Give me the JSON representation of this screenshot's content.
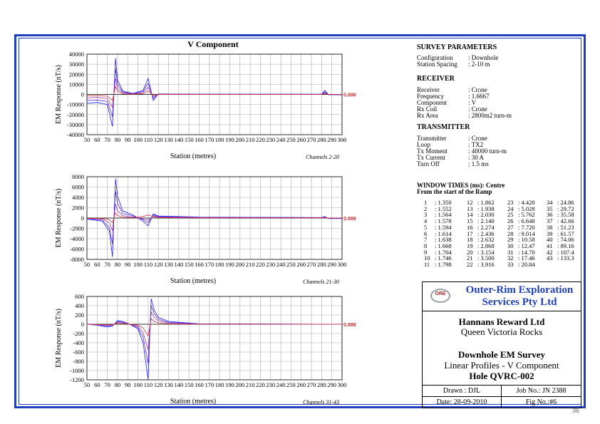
{
  "chart_data": [
    {
      "type": "line",
      "title": "V Component",
      "ylabel": "EM Response (nT/s)",
      "xlabel": "Station (metres)",
      "channels_label": "Channels 2-20",
      "xlim": [
        50,
        300
      ],
      "ylim": [
        -40000,
        40000
      ],
      "yticks": [
        -40000,
        -30000,
        -20000,
        -10000,
        0,
        10000,
        20000,
        30000,
        40000
      ],
      "xticks": [
        50,
        60,
        70,
        80,
        90,
        100,
        110,
        120,
        130,
        140,
        150,
        160,
        170,
        180,
        190,
        200,
        210,
        220,
        230,
        240,
        250,
        260,
        270,
        280,
        290,
        300
      ],
      "end_label": "0.000",
      "series": [
        {
          "x": [
            50,
            60,
            70,
            75,
            78,
            80,
            85,
            95,
            105,
            110,
            115,
            120,
            160,
            280,
            283,
            287,
            290,
            300
          ],
          "y": [
            -9000,
            -8000,
            -10000,
            -32000,
            36000,
            14000,
            3500,
            1000,
            4000,
            16000,
            -6000,
            500,
            300,
            200,
            4000,
            -500,
            -300,
            -500
          ]
        },
        {
          "x": [
            50,
            60,
            70,
            75,
            78,
            80,
            85,
            95,
            105,
            110,
            115,
            120,
            160,
            280,
            283,
            287,
            290,
            300
          ],
          "y": [
            -6000,
            -5500,
            -7000,
            -22000,
            26000,
            10000,
            2500,
            800,
            3000,
            11000,
            -4000,
            300,
            200,
            150,
            2500,
            -300,
            -200,
            -300
          ]
        },
        {
          "x": [
            50,
            60,
            70,
            75,
            78,
            80,
            85,
            95,
            105,
            110,
            115,
            120,
            160,
            280,
            283,
            287,
            290,
            300
          ],
          "y": [
            -3500,
            -3000,
            -4000,
            -13000,
            16000,
            6000,
            1500,
            500,
            1800,
            7000,
            -2500,
            200,
            100,
            100,
            1500,
            -200,
            -100,
            -200
          ]
        },
        {
          "x": [
            50,
            60,
            70,
            75,
            78,
            80,
            85,
            95,
            105,
            110,
            115,
            120,
            160,
            280,
            283,
            287,
            290,
            300
          ],
          "y": [
            -1500,
            -1200,
            -1800,
            -6000,
            8000,
            3000,
            700,
            200,
            900,
            3500,
            -1200,
            100,
            50,
            50,
            800,
            -100,
            0,
            -100
          ]
        }
      ]
    },
    {
      "type": "line",
      "ylabel": "EM Response (nT/s)",
      "xlabel": "Station (metres)",
      "channels_label": "Channels 21-30",
      "xlim": [
        50,
        300
      ],
      "ylim": [
        -8000,
        8000
      ],
      "yticks": [
        -8000,
        -6000,
        -4000,
        -2000,
        0,
        2000,
        4000,
        6000,
        8000
      ],
      "xticks": [
        50,
        60,
        70,
        80,
        90,
        100,
        110,
        120,
        130,
        140,
        150,
        160,
        170,
        180,
        190,
        200,
        210,
        220,
        230,
        240,
        250,
        260,
        270,
        280,
        290,
        300
      ],
      "end_label": "0.000",
      "series": [
        {
          "x": [
            50,
            65,
            72,
            75,
            78,
            80,
            85,
            95,
            105,
            110,
            115,
            120,
            160,
            280,
            283,
            287,
            300
          ],
          "y": [
            -200,
            -600,
            -2500,
            -7500,
            7600,
            4200,
            1400,
            600,
            -600,
            -1500,
            800,
            400,
            200,
            100,
            300,
            -100,
            -100
          ]
        },
        {
          "x": [
            50,
            65,
            72,
            75,
            78,
            80,
            85,
            95,
            105,
            110,
            115,
            120,
            160,
            280,
            283,
            287,
            300
          ],
          "y": [
            -150,
            -400,
            -1800,
            -5000,
            5200,
            2800,
            900,
            400,
            -300,
            -900,
            600,
            300,
            150,
            80,
            200,
            -50,
            -50
          ]
        },
        {
          "x": [
            50,
            65,
            72,
            75,
            78,
            80,
            85,
            95,
            105,
            110,
            115,
            120,
            160,
            280,
            283,
            287,
            300
          ],
          "y": [
            -100,
            -200,
            -900,
            -2500,
            2700,
            1400,
            450,
            200,
            -150,
            -400,
            400,
            200,
            80,
            50,
            120,
            0,
            0
          ]
        },
        {
          "x": [
            50,
            65,
            72,
            75,
            78,
            80,
            85,
            95,
            105,
            110,
            115,
            120,
            160,
            280,
            283,
            287,
            300
          ],
          "y": [
            -50,
            -100,
            -300,
            -900,
            1000,
            500,
            150,
            80,
            300,
            600,
            250,
            100,
            50,
            30,
            60,
            0,
            0
          ]
        }
      ]
    },
    {
      "type": "line",
      "ylabel": "EM Response (nT/s)",
      "xlabel": "Station (metres)",
      "channels_label": "Channels 31-43",
      "xlim": [
        50,
        300
      ],
      "ylim": [
        -1200,
        600
      ],
      "yticks": [
        -1200,
        -1000,
        -800,
        -600,
        -400,
        -200,
        0,
        200,
        400,
        600
      ],
      "xticks": [
        50,
        60,
        70,
        80,
        90,
        100,
        110,
        120,
        130,
        140,
        150,
        160,
        170,
        180,
        190,
        200,
        210,
        220,
        230,
        240,
        250,
        260,
        270,
        280,
        290,
        300
      ],
      "end_label": "0.000",
      "series": [
        {
          "x": [
            50,
            60,
            70,
            75,
            80,
            85,
            90,
            100,
            105,
            110,
            113,
            116,
            120,
            130,
            160,
            300
          ],
          "y": [
            0,
            -20,
            -60,
            -40,
            80,
            60,
            20,
            -100,
            -400,
            -1200,
            550,
            300,
            150,
            60,
            10,
            0
          ]
        },
        {
          "x": [
            50,
            60,
            70,
            75,
            80,
            85,
            90,
            100,
            105,
            110,
            113,
            116,
            120,
            130,
            160,
            300
          ],
          "y": [
            0,
            -15,
            -40,
            -30,
            60,
            45,
            15,
            -70,
            -280,
            -850,
            400,
            220,
            110,
            40,
            8,
            0
          ]
        },
        {
          "x": [
            50,
            60,
            70,
            75,
            80,
            85,
            90,
            100,
            105,
            110,
            113,
            116,
            120,
            130,
            160,
            300
          ],
          "y": [
            0,
            -10,
            -25,
            -20,
            40,
            30,
            10,
            -45,
            -180,
            -550,
            260,
            140,
            70,
            25,
            5,
            0
          ]
        },
        {
          "x": [
            50,
            60,
            70,
            75,
            80,
            85,
            90,
            100,
            105,
            110,
            113,
            116,
            120,
            130,
            160,
            300
          ],
          "y": [
            0,
            -5,
            -10,
            -8,
            20,
            15,
            5,
            -20,
            -80,
            -250,
            120,
            60,
            30,
            10,
            2,
            0
          ]
        }
      ]
    }
  ],
  "series_colors": [
    "#1a1aff",
    "#5a2ad8",
    "#9a3ab0",
    "#d03040"
  ],
  "frame_color": "#1f3fbf",
  "survey": {
    "title": "SURVEY PARAMETERS",
    "rows": [
      {
        "k": "Configuration",
        "v": ": Downhole"
      },
      {
        "k": "Station Spacing",
        "v": ": 2-10 m"
      }
    ]
  },
  "receiver": {
    "title": "RECEIVER",
    "rows": [
      {
        "k": "Receiver",
        "v": ": Crone"
      },
      {
        "k": "Frequency",
        "v": ": 1.6667"
      },
      {
        "k": "Component",
        "v": ": V"
      },
      {
        "k": "Rx Coil",
        "v": ": Crone"
      },
      {
        "k": "Rx Area",
        "v": ": 2800m2 turn-m"
      }
    ]
  },
  "transmitter": {
    "title": "TRANSMITTER",
    "rows": [
      {
        "k": "Transmitter",
        "v": ": Crone"
      },
      {
        "k": "Loop",
        "v": ": TX2"
      },
      {
        "k": "Tx Moment",
        "v": ": 40000 turn-m"
      },
      {
        "k": "Tx Current",
        "v": ": 30 A"
      },
      {
        "k": "Turn Off",
        "v": ": 1.5 ms"
      }
    ]
  },
  "window_times": {
    "title1": "WINDOW TIMES (ms): Centre",
    "title2": "From the start of the Ramp",
    "columns": [
      [
        [
          "1",
          ": 1.350"
        ],
        [
          "2",
          ": 1.552"
        ],
        [
          "3",
          ": 1.564"
        ],
        [
          "4",
          ": 1.578"
        ],
        [
          "5",
          ": 1.594"
        ],
        [
          "6",
          ": 1.614"
        ],
        [
          "7",
          ": 1.638"
        ],
        [
          "8",
          ": 1.668"
        ],
        [
          "9",
          ": 1.704"
        ],
        [
          "10",
          ": 1.746"
        ],
        [
          "11",
          ": 1.798"
        ]
      ],
      [
        [
          "12",
          ": 1.862"
        ],
        [
          "13",
          ": 1.938"
        ],
        [
          "14",
          ": 2.030"
        ],
        [
          "15",
          ": 2.140"
        ],
        [
          "16",
          ": 2.274"
        ],
        [
          "17",
          ": 2.436"
        ],
        [
          "18",
          ": 2.632"
        ],
        [
          "19",
          ": 2.868"
        ],
        [
          "20",
          ": 3.154"
        ],
        [
          "21",
          ": 3.500"
        ],
        [
          "22",
          ": 3.916"
        ]
      ],
      [
        [
          "23",
          ": 4.420"
        ],
        [
          "24",
          ": 5.028"
        ],
        [
          "25",
          ": 5.762"
        ],
        [
          "26",
          ": 6.648"
        ],
        [
          "27",
          ": 7.720"
        ],
        [
          "28",
          ": 9.014"
        ],
        [
          "29",
          ": 10.58"
        ],
        [
          "30",
          ": 12.47"
        ],
        [
          "31",
          ": 14.70"
        ],
        [
          "32",
          ": 17.46"
        ],
        [
          "33",
          ": 20.84"
        ]
      ],
      [
        [
          "34",
          ": 24.86"
        ],
        [
          "35",
          ": 29.72"
        ],
        [
          "36",
          ": 35.58"
        ],
        [
          "37",
          ": 42.66"
        ],
        [
          "38",
          ": 51.23"
        ],
        [
          "39",
          ": 61.57"
        ],
        [
          "40",
          ": 74.06"
        ],
        [
          "41",
          ": 89.16"
        ],
        [
          "42",
          ": 107.4"
        ],
        [
          "43",
          ": 133.3"
        ]
      ]
    ]
  },
  "titleblock": {
    "logo": "ORE",
    "company1": "Outer-Rim Exploration",
    "company2": "Services Pty Ltd",
    "client": "Hannans Reward Ltd",
    "project": "Queen Victoria Rocks",
    "survey": "Downhole EM Survey",
    "desc": "Linear Profiles - V Component",
    "hole": "Hole QVRC-002",
    "drawn": "Drawn : DJL",
    "job": "Job No.: JN 2388",
    "date": "Date: 28-09-2010",
    "fig": "Fig No.:#6"
  },
  "page_number": "36"
}
